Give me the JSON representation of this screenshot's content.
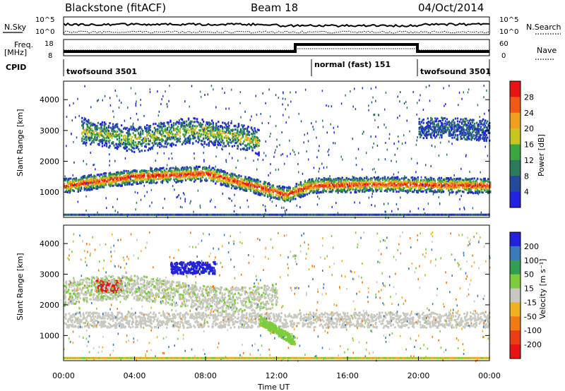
{
  "header": {
    "station": "Blackstone (fitACF)",
    "beam": "Beam 18",
    "date": "04/Oct/2014"
  },
  "strip_labels": {
    "nsky": "N.Sky",
    "nsearch": "N.Search",
    "freq": "Freq.",
    "freq_unit": "[MHz]",
    "nave": "Nave",
    "cpid": "CPID"
  },
  "chart_data": [
    {
      "type": "line",
      "name": "noise",
      "series_labels": [
        "N.Sky",
        "N.Search"
      ],
      "y_ticks_left": [
        "10^5",
        "10^0"
      ],
      "y_ticks_right": [
        "10^5",
        "10^0"
      ],
      "xlim": [
        0,
        24
      ]
    },
    {
      "type": "line",
      "name": "frequency-nave",
      "series_labels": [
        "Freq. [MHz]",
        "Nave"
      ],
      "y_ticks_left": [
        "18",
        "8"
      ],
      "y_ticks_right": [
        "60",
        "0"
      ],
      "segments_hours": [
        [
          0,
          13.9
        ],
        [
          13.9,
          19.9
        ],
        [
          19.9,
          24
        ]
      ],
      "xlim": [
        0,
        24
      ]
    },
    {
      "type": "table",
      "name": "cpid",
      "segments": [
        {
          "start": 0,
          "end": 13.9,
          "label": "twofsound 3501"
        },
        {
          "start": 13.9,
          "end": 19.9,
          "label": "normal (fast) 151"
        },
        {
          "start": 19.9,
          "end": 24,
          "label": "twofsound 3501"
        }
      ]
    },
    {
      "type": "heatmap",
      "name": "power",
      "ylabel": "Slant Range [km]",
      "yticks": [
        1000,
        2000,
        3000,
        4000
      ],
      "ylim": [
        180,
        4600
      ],
      "xlim": [
        0,
        24
      ],
      "colorbar": {
        "label": "Power [dB]",
        "ticks": [
          "4",
          "8",
          "12",
          "16",
          "20",
          "24",
          "28"
        ],
        "colors": [
          "#2222e0",
          "#234a9c",
          "#2a7a5c",
          "#3aa640",
          "#c8c61e",
          "#f0a020",
          "#f05a14",
          "#e81414"
        ]
      },
      "bands": [
        {
          "name": "main-echo",
          "range": [
            [
              0,
              1200
            ],
            [
              4,
              1500
            ],
            [
              8,
              1600
            ],
            [
              11,
              1150
            ],
            [
              12.5,
              900
            ],
            [
              13.9,
              1200
            ],
            [
              18,
              1250
            ],
            [
              24,
              1200
            ]
          ],
          "width": 350,
          "color": "#f03c14"
        },
        {
          "name": "upper-echo",
          "range": [
            [
              1,
              3000
            ],
            [
              4,
              2700
            ],
            [
              7,
              3000
            ],
            [
              10,
              2800
            ],
            [
              11,
              2600
            ]
          ],
          "width": 600,
          "color": "#9ec628"
        },
        {
          "name": "scatter-late",
          "range": [
            [
              20,
              3100
            ],
            [
              24,
              3000
            ]
          ],
          "width": 500,
          "color": "#1e50b4"
        }
      ]
    },
    {
      "type": "heatmap",
      "name": "velocity",
      "ylabel": "Slant Range [km]",
      "xlabel": "Time UT",
      "yticks": [
        1000,
        2000,
        3000,
        4000
      ],
      "ylim": [
        180,
        4600
      ],
      "xlim": [
        0,
        24
      ],
      "xticks": [
        "00:00",
        "04:00",
        "08:00",
        "12:00",
        "16:00",
        "20:00",
        "00:00"
      ],
      "colorbar": {
        "label": "Velocity [m s⁻¹]",
        "ticks": [
          "200",
          "100",
          "50",
          "15",
          "-15",
          "-50",
          "-100",
          "-200"
        ],
        "colors": [
          "#2222d8",
          "#3a7ab8",
          "#30a050",
          "#7ccc3c",
          "#c8c8c0",
          "#f0b020",
          "#f07a14",
          "#e84014",
          "#e81414"
        ]
      },
      "features": [
        {
          "name": "ground-scatter-band",
          "hours": [
            0,
            24
          ],
          "range": [
            1250,
            1750
          ],
          "color": "#c8c8c0"
        },
        {
          "name": "negative-velocity-blob",
          "hours": [
            6,
            8.5
          ],
          "range": [
            3000,
            3400
          ],
          "color": "#2222d8"
        },
        {
          "name": "red-patch",
          "hours": [
            1.8,
            3.2
          ],
          "range": [
            2400,
            2800
          ],
          "color": "#e81414"
        },
        {
          "name": "green-descent",
          "hours": [
            11,
            13
          ],
          "range": [
            700,
            1500
          ],
          "color": "#7ccc3c"
        }
      ]
    }
  ]
}
